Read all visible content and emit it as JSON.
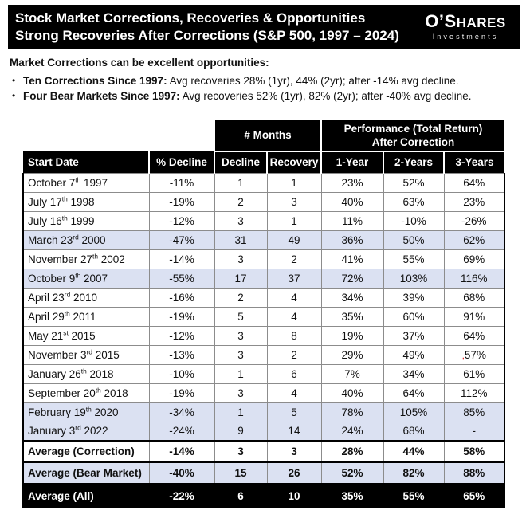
{
  "header": {
    "title_line1": "Stock Market Corrections, Recoveries & Opportunities",
    "title_line2": "Strong Recoveries After Corrections (S&P 500, 1997 – 2024)",
    "logo": {
      "name_prefix": "O’S",
      "name_rest": "HARES",
      "subtitle": "Investments"
    }
  },
  "intro": {
    "heading": "Market Corrections can be excellent opportunities:",
    "bullet_glyph": "•",
    "bullets": [
      {
        "bold": "Ten Corrections Since 1997:",
        "rest": " Avg recoveries 28% (1yr), 44% (2yr); after -14% avg decline."
      },
      {
        "bold": "Four Bear Markets Since 1997:",
        "rest": " Avg recoveries 52% (1yr), 82% (2yr); after -40% avg decline."
      }
    ]
  },
  "table": {
    "group_headers": {
      "months": "# Months",
      "performance_line1": "Performance (Total Return)",
      "performance_line2": "After Correction"
    },
    "columns": [
      "Start Date",
      "% Decline",
      "Decline",
      "Recovery",
      "1-Year",
      "2-Years",
      "3-Years"
    ],
    "rows": [
      {
        "cells": [
          "October 7th 1997",
          "-11%",
          "1",
          "1",
          "23%",
          "52%",
          "64%"
        ],
        "highlight": false
      },
      {
        "cells": [
          "July 17th 1998",
          "-19%",
          "2",
          "3",
          "40%",
          "63%",
          "23%"
        ],
        "highlight": false
      },
      {
        "cells": [
          "July 16th 1999",
          "-12%",
          "3",
          "1",
          "11%",
          "-10%",
          "-26%"
        ],
        "highlight": false
      },
      {
        "cells": [
          "March 23rd 2000",
          "-47%",
          "31",
          "49",
          "36%",
          "50%",
          "62%"
        ],
        "highlight": true
      },
      {
        "cells": [
          "November 27th 2002",
          "-14%",
          "3",
          "2",
          "41%",
          "55%",
          "69%"
        ],
        "highlight": false
      },
      {
        "cells": [
          "October 9th 2007",
          "-55%",
          "17",
          "37",
          "72%",
          "103%",
          "116%"
        ],
        "highlight": true
      },
      {
        "cells": [
          "April 23rd 2010",
          "-16%",
          "2",
          "4",
          "34%",
          "39%",
          "68%"
        ],
        "highlight": false
      },
      {
        "cells": [
          "April 29th 2011",
          "-19%",
          "5",
          "4",
          "35%",
          "60%",
          "91%"
        ],
        "highlight": false
      },
      {
        "cells": [
          "May 21st 2015",
          "-12%",
          "3",
          "8",
          "19%",
          "37%",
          "64%"
        ],
        "highlight": false
      },
      {
        "cells": [
          "November 3rd 2015",
          "-13%",
          "3",
          "2",
          "29%",
          "49%",
          "57%"
        ],
        "highlight": false,
        "red_mark_cell": 6
      },
      {
        "cells": [
          "January 26th 2018",
          "-10%",
          "1",
          "6",
          "7%",
          "34%",
          "61%"
        ],
        "highlight": false
      },
      {
        "cells": [
          "September 20th 2018",
          "-19%",
          "3",
          "4",
          "40%",
          "64%",
          "112%"
        ],
        "highlight": false
      },
      {
        "cells": [
          "February 19th 2020",
          "-34%",
          "1",
          "5",
          "78%",
          "105%",
          "85%"
        ],
        "highlight": true
      },
      {
        "cells": [
          "January 3rd 2022",
          "-24%",
          "9",
          "14",
          "24%",
          "68%",
          "-"
        ],
        "highlight": true
      }
    ],
    "footer_rows": [
      {
        "cells": [
          "Average (Correction)",
          "-14%",
          "3",
          "3",
          "28%",
          "44%",
          "58%"
        ],
        "style": "plain"
      },
      {
        "cells": [
          "Average (Bear Market)",
          "-40%",
          "15",
          "26",
          "52%",
          "82%",
          "88%"
        ],
        "style": "highlight"
      },
      {
        "cells": [
          "Average (All)",
          "-22%",
          "6",
          "10",
          "35%",
          "55%",
          "65%"
        ],
        "style": "black"
      }
    ]
  },
  "colors": {
    "header_bg": "#000000",
    "row_highlight": "#dbe1f2",
    "proof_mark_red": "#dd1111"
  }
}
